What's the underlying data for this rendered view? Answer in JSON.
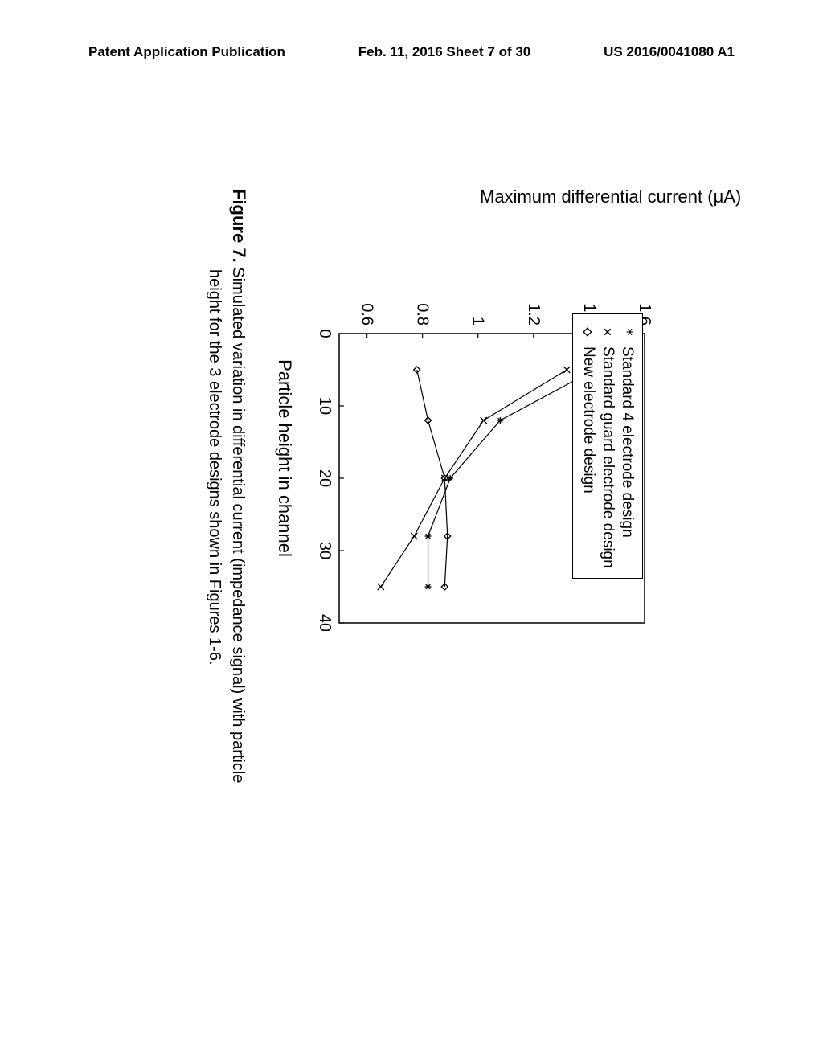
{
  "header": {
    "left": "Patent Application Publication",
    "center": "Feb. 11, 2016  Sheet 7 of 30",
    "right": "US 2016/0041080 A1"
  },
  "chart": {
    "type": "line",
    "title": "",
    "xlabel": "Particle height in channel",
    "ylabel": "Maximum differential current (μA)",
    "xlim": [
      0,
      40
    ],
    "ylim": [
      0.5,
      1.6
    ],
    "xtick_step": 10,
    "ytick_step": 0.2,
    "xtick_labels": [
      "0",
      "10",
      "20",
      "30",
      "40"
    ],
    "ytick_labels": [
      "0.6",
      "0.8",
      "1",
      "1.2",
      "1.4",
      "1.6"
    ],
    "background_color": "#ffffff",
    "axis_color": "#000000",
    "line_color": "#000000",
    "line_width": 1.2,
    "label_fontsize": 22,
    "tick_fontsize": 20,
    "marker_size": 8,
    "series": [
      {
        "name": "Standard 4 electrode design",
        "marker": "asterisk",
        "x": [
          5,
          12,
          20,
          28,
          35
        ],
        "y": [
          1.42,
          1.08,
          0.9,
          0.82,
          0.82
        ]
      },
      {
        "name": "Standard guard electrode design",
        "marker": "cross",
        "x": [
          5,
          12,
          20,
          28,
          35
        ],
        "y": [
          1.32,
          1.02,
          0.88,
          0.77,
          0.65
        ]
      },
      {
        "name": "New electrode design",
        "marker": "diamond",
        "x": [
          5,
          12,
          20,
          28,
          35
        ],
        "y": [
          0.78,
          0.82,
          0.88,
          0.89,
          0.88
        ]
      }
    ],
    "legend": {
      "items": [
        {
          "marker": "*",
          "label": "Standard 4 electrode design"
        },
        {
          "marker": "×",
          "label": "Standard guard electrode design"
        },
        {
          "marker": "◇",
          "label": "New electrode design"
        }
      ]
    }
  },
  "caption": {
    "label": "Figure 7.",
    "text_line1": "Simulated variation in differential current (impedance signal) with particle",
    "text_line2": "height for the 3 electrode designs shown in Figures 1-6."
  }
}
